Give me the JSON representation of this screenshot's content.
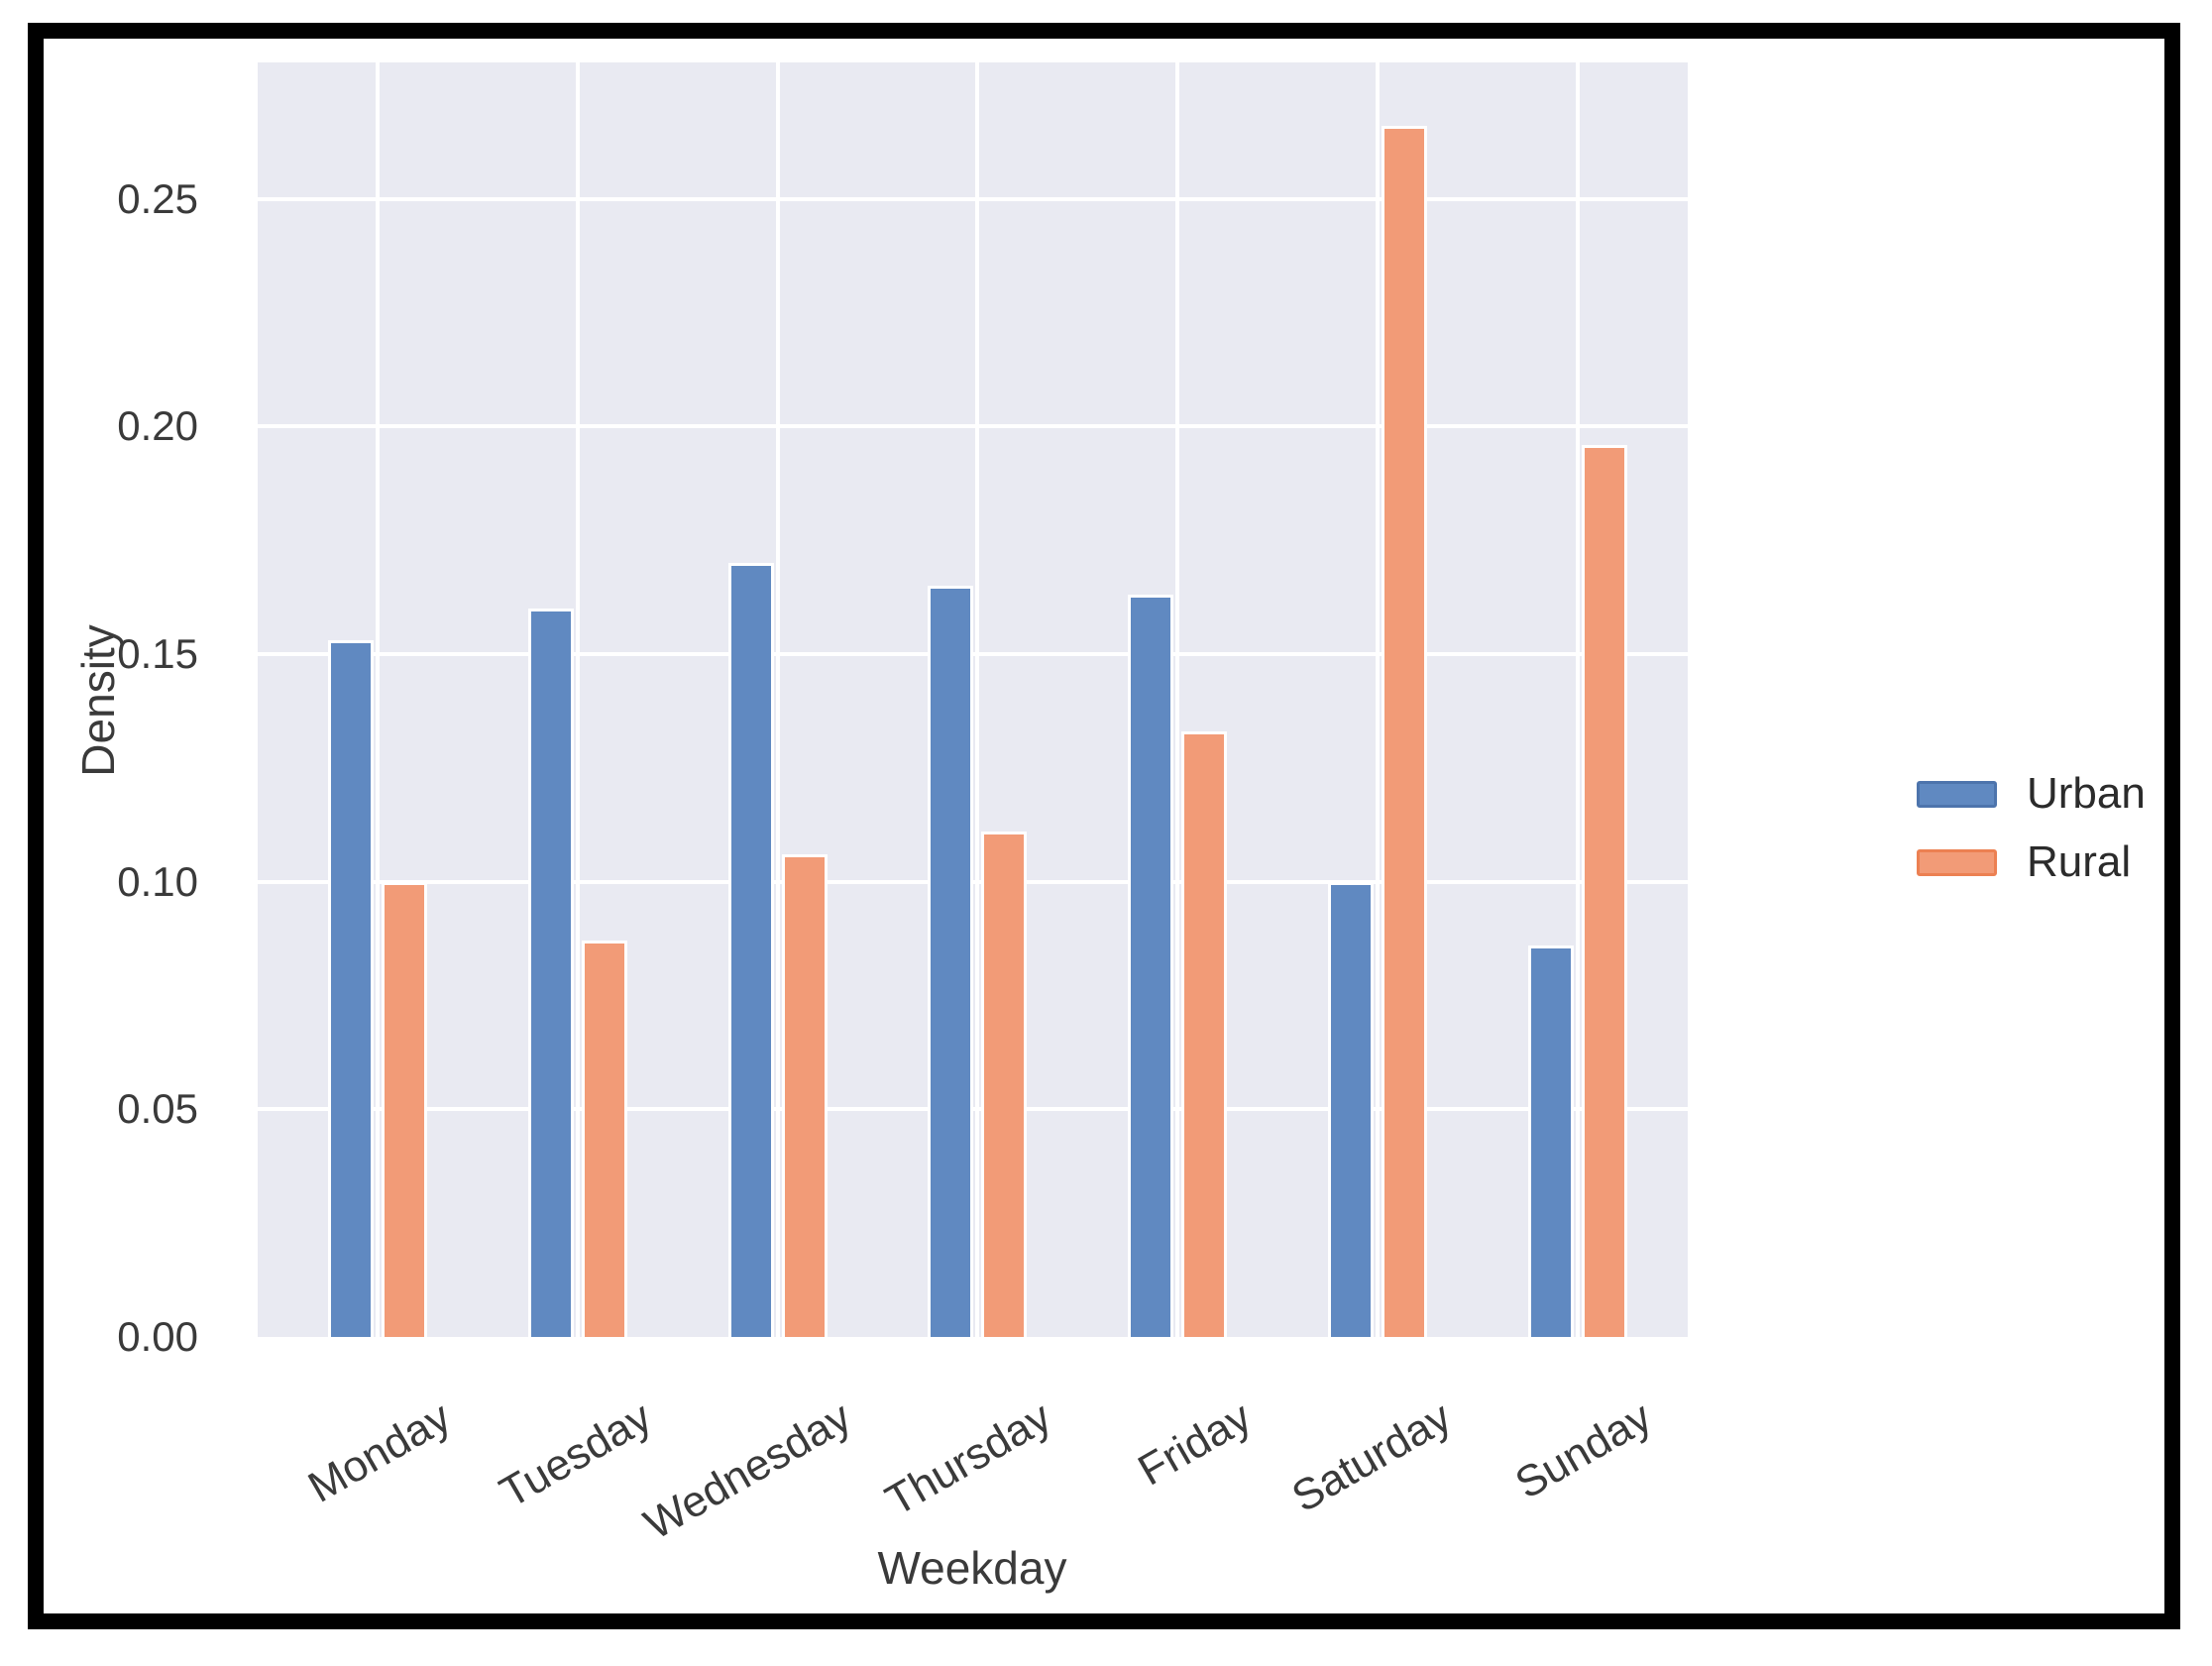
{
  "chart_data": {
    "type": "bar",
    "title": "",
    "xlabel": "Weekday",
    "ylabel": "Density",
    "categories": [
      "Monday",
      "Tuesday",
      "Wednesday",
      "Thursday",
      "Friday",
      "Saturday",
      "Sunday"
    ],
    "series": [
      {
        "name": "Urban",
        "color": "#6089c1",
        "edge_color": "#4d74ac",
        "values": [
          0.153,
          0.16,
          0.17,
          0.165,
          0.163,
          0.1,
          0.086
        ]
      },
      {
        "name": "Rural",
        "color": "#f29b77",
        "edge_color": "#ec8052",
        "values": [
          0.1,
          0.087,
          0.106,
          0.111,
          0.133,
          0.266,
          0.196
        ]
      }
    ],
    "ylim": [
      0,
      0.28
    ],
    "yticks": [
      0,
      0.05,
      0.1,
      0.15,
      0.2,
      0.25
    ],
    "ytick_labels": [
      "0.00",
      "0.05",
      "0.10",
      "0.15",
      "0.20",
      "0.25"
    ],
    "grid": true,
    "grid_color": "#ffffff",
    "plot_background": "#e9eaf2",
    "bar_edge": "#ffffff",
    "legend_position": "right-outside",
    "legend_items": [
      "Urban",
      "Rural"
    ]
  }
}
